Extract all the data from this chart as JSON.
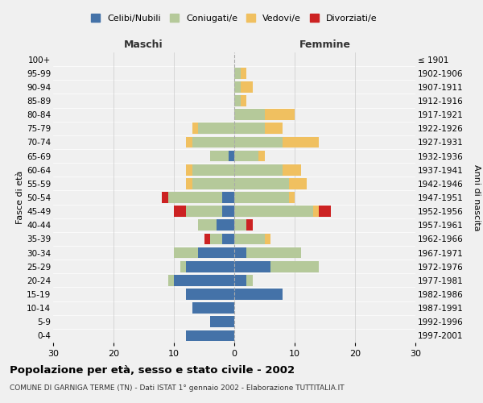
{
  "age_groups": [
    "0-4",
    "5-9",
    "10-14",
    "15-19",
    "20-24",
    "25-29",
    "30-34",
    "35-39",
    "40-44",
    "45-49",
    "50-54",
    "55-59",
    "60-64",
    "65-69",
    "70-74",
    "75-79",
    "80-84",
    "85-89",
    "90-94",
    "95-99",
    "100+"
  ],
  "birth_years": [
    "1997-2001",
    "1992-1996",
    "1987-1991",
    "1982-1986",
    "1977-1981",
    "1972-1976",
    "1967-1971",
    "1962-1966",
    "1957-1961",
    "1952-1956",
    "1947-1951",
    "1942-1946",
    "1937-1941",
    "1932-1936",
    "1927-1931",
    "1922-1926",
    "1917-1921",
    "1912-1916",
    "1907-1911",
    "1902-1906",
    "≤ 1901"
  ],
  "male": {
    "celibi": [
      8,
      4,
      7,
      8,
      10,
      8,
      6,
      2,
      3,
      2,
      2,
      0,
      0,
      1,
      0,
      0,
      0,
      0,
      0,
      0,
      0
    ],
    "coniugati": [
      0,
      0,
      0,
      0,
      1,
      1,
      4,
      2,
      3,
      6,
      9,
      7,
      7,
      3,
      7,
      6,
      0,
      0,
      0,
      0,
      0
    ],
    "vedovi": [
      0,
      0,
      0,
      0,
      0,
      0,
      0,
      0,
      0,
      0,
      0,
      1,
      1,
      0,
      1,
      1,
      0,
      0,
      0,
      0,
      0
    ],
    "divorziati": [
      0,
      0,
      0,
      0,
      0,
      0,
      0,
      1,
      0,
      2,
      1,
      0,
      0,
      0,
      0,
      0,
      0,
      0,
      0,
      0,
      0
    ]
  },
  "female": {
    "nubili": [
      0,
      0,
      0,
      8,
      2,
      6,
      2,
      0,
      0,
      0,
      0,
      0,
      0,
      0,
      0,
      0,
      0,
      0,
      0,
      0,
      0
    ],
    "coniugate": [
      0,
      0,
      0,
      0,
      1,
      8,
      9,
      5,
      2,
      13,
      9,
      9,
      8,
      4,
      8,
      5,
      5,
      1,
      1,
      1,
      0
    ],
    "vedove": [
      0,
      0,
      0,
      0,
      0,
      0,
      0,
      1,
      0,
      1,
      1,
      3,
      3,
      1,
      6,
      3,
      5,
      1,
      2,
      1,
      0
    ],
    "divorziate": [
      0,
      0,
      0,
      0,
      0,
      0,
      0,
      0,
      1,
      2,
      0,
      0,
      0,
      0,
      0,
      0,
      0,
      0,
      0,
      0,
      0
    ]
  },
  "colors": {
    "celibi": "#4472a8",
    "coniugati": "#b5c99a",
    "vedovi": "#f0c060",
    "divorziati": "#cc2222"
  },
  "xlim": 30,
  "title": "Popolazione per età, sesso e stato civile - 2002",
  "subtitle": "COMUNE DI GARNIGA TERME (TN) - Dati ISTAT 1° gennaio 2002 - Elaborazione TUTTITALIA.IT",
  "ylabel_left": "Fasce di età",
  "ylabel_right": "Anni di nascita",
  "header_left": "Maschi",
  "header_right": "Femmine",
  "legend_labels": [
    "Celibi/Nubili",
    "Coniugati/e",
    "Vedovi/e",
    "Divorziati/e"
  ],
  "bg_color": "#f0f0f0"
}
